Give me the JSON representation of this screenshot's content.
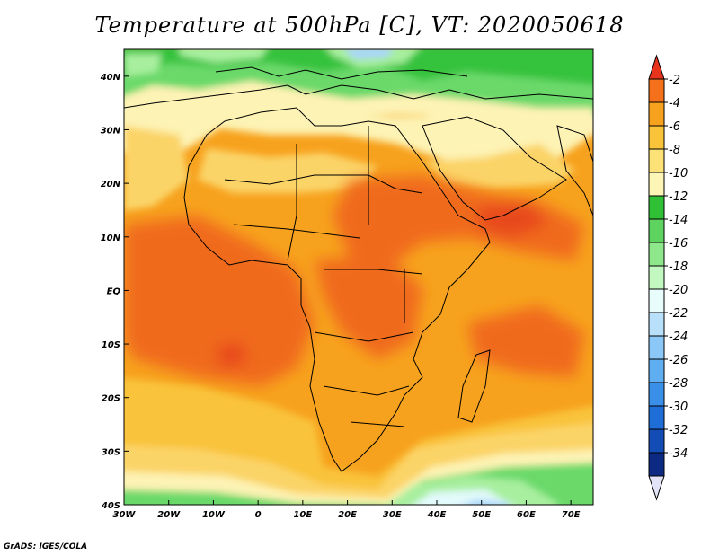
{
  "title": "Temperature at 500hPa [C], VT: 2020050618",
  "credit": "GrADS: IGES/COLA",
  "lat_labels": [
    "40N",
    "30N",
    "20N",
    "10N",
    "EQ",
    "10S",
    "20S",
    "30S",
    "40S"
  ],
  "lon_labels": [
    "30W",
    "20W",
    "10W",
    "0",
    "10E",
    "20E",
    "30E",
    "40E",
    "50E",
    "60E",
    "70E"
  ],
  "colorbar": {
    "labels": [
      "-2",
      "-4",
      "-6",
      "-8",
      "-10",
      "-12",
      "-14",
      "-16",
      "-18",
      "-20",
      "-22",
      "-24",
      "-26",
      "-28",
      "-30",
      "-32",
      "-34"
    ],
    "colors": [
      "#e8341c",
      "#f5701a",
      "#f7a21e",
      "#f9c33a",
      "#fbe176",
      "#fdf5b6",
      "#2fc036",
      "#5ed35f",
      "#8ee88b",
      "#c2f7bf",
      "#e8fcfc",
      "#b9e0fb",
      "#8cc8f7",
      "#5faef2",
      "#3a8fe9",
      "#1f6ed8",
      "#144cb6",
      "#0c2a82",
      "#e3e3f7"
    ]
  },
  "map_colors": {
    "ocean_warm": "#f7921d",
    "land_warm": "#f9b23a",
    "hot_core": "#f06a1c",
    "hotter": "#e8491a",
    "mid": "#fbd468",
    "pale": "#fdf3b4",
    "green_dark": "#36c23c",
    "green": "#6ad96a",
    "green_light": "#a8ef9f",
    "cyan": "#e3fafc",
    "blue_light": "#a9d6f8",
    "blue": "#6fb4ef",
    "border": "#000000"
  }
}
